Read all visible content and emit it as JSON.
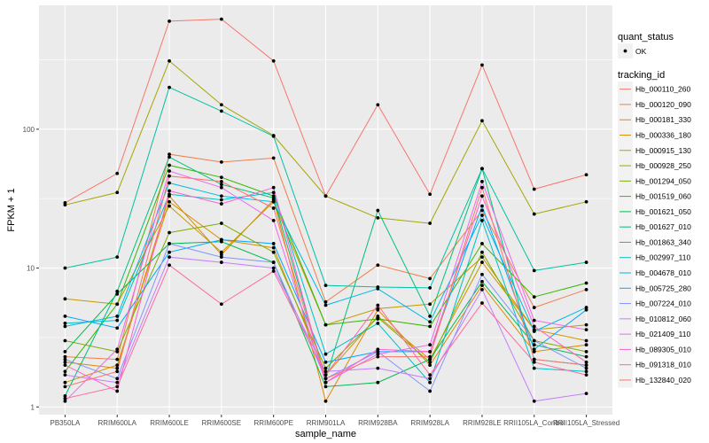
{
  "chart_data": {
    "type": "line",
    "xlabel": "sample_name",
    "ylabel": "FPKM + 1",
    "y_scale": "log10",
    "ylim": [
      0.88,
      780
    ],
    "y_ticks": [
      1,
      10,
      100
    ],
    "y_tick_labels": [
      "1",
      "10",
      "100"
    ],
    "categories": [
      "PB350LA",
      "RRIM600LA",
      "RRIM600LE",
      "RRIM600SE",
      "RRIM600PE",
      "RRIM901LA",
      "RRIM928BA",
      "RRIM928LA",
      "RRIM928LE",
      "RRII105LA_Control",
      "RRII105LA_Stressed"
    ],
    "legend": {
      "quant_title": "quant_status",
      "quant_label": "OK",
      "series_title": "tracking_id",
      "position": "right"
    },
    "series": [
      {
        "name": "Hb_000110_260",
        "color": "#F8766D",
        "values": [
          29.5,
          48,
          600,
          620,
          310,
          33,
          150,
          34,
          290,
          37,
          47
        ]
      },
      {
        "name": "Hb_000120_090",
        "color": "#EF7F49",
        "values": [
          2.3,
          2.2,
          66,
          58,
          62,
          5.7,
          10.5,
          8.4,
          26,
          5.2,
          7.0
        ]
      },
      {
        "name": "Hb_000181_330",
        "color": "#E38900",
        "values": [
          2.1,
          1.9,
          33,
          12.5,
          31,
          1.1,
          5.0,
          2.0,
          7.5,
          2.5,
          2.8
        ]
      },
      {
        "name": "Hb_000336_180",
        "color": "#D39200",
        "values": [
          1.5,
          2.0,
          30,
          16,
          14,
          1.7,
          4.5,
          2.2,
          11,
          3.6,
          3.0
        ]
      },
      {
        "name": "Hb_000915_130",
        "color": "#C09B00",
        "values": [
          6.0,
          5.5,
          28,
          13,
          30,
          3.9,
          5.1,
          5.5,
          12,
          3.6,
          3.9
        ]
      },
      {
        "name": "Hb_000928_250",
        "color": "#A3A500",
        "values": [
          28.5,
          35,
          310,
          150,
          90,
          33,
          23,
          21,
          115,
          24.5,
          30
        ]
      },
      {
        "name": "Hb_001294_050",
        "color": "#7CAE00",
        "values": [
          3.0,
          2.5,
          18,
          21,
          13,
          1.9,
          4.4,
          2.1,
          13,
          3.0,
          2.5
        ]
      },
      {
        "name": "Hb_001519_060",
        "color": "#39B600",
        "values": [
          1.8,
          5.5,
          55,
          45,
          33,
          3.9,
          4.3,
          3.8,
          15,
          6.2,
          7.8
        ]
      },
      {
        "name": "Hb_001621_050",
        "color": "#00BB4E",
        "values": [
          2.5,
          6.5,
          15,
          15.5,
          11,
          1.4,
          1.5,
          2.2,
          8.0,
          2.8,
          2.3
        ]
      },
      {
        "name": "Hb_001627_010",
        "color": "#00BF7D",
        "values": [
          1.2,
          6.8,
          63,
          40,
          32,
          1.6,
          26,
          4.5,
          52,
          2.2,
          2.0
        ]
      },
      {
        "name": "Hb_001863_340",
        "color": "#00C1A3",
        "values": [
          10,
          12,
          200,
          135,
          89,
          7.5,
          7.3,
          7.2,
          52,
          9.6,
          11
        ]
      },
      {
        "name": "Hb_002997_110",
        "color": "#00BFC4",
        "values": [
          4.0,
          4.2,
          34,
          31,
          35,
          2.4,
          4.0,
          1.5,
          22,
          1.9,
          1.8
        ]
      },
      {
        "name": "Hb_004678_010",
        "color": "#00B8E7",
        "values": [
          3.8,
          4.5,
          41,
          33,
          30,
          5.4,
          7.1,
          4.1,
          24,
          3.5,
          5.2
        ]
      },
      {
        "name": "Hb_005725_280",
        "color": "#00A9FF",
        "values": [
          4.5,
          3.7,
          13,
          16,
          15,
          2.1,
          2.5,
          2.5,
          28,
          2.6,
          5.0
        ]
      },
      {
        "name": "Hb_007224_010",
        "color": "#8494FF",
        "values": [
          2.2,
          1.6,
          15,
          12,
          11,
          1.6,
          2.5,
          1.3,
          9.0,
          3.0,
          1.9
        ]
      },
      {
        "name": "Hb_010812_060",
        "color": "#C77CFF",
        "values": [
          1.7,
          1.5,
          12,
          11,
          10,
          1.8,
          1.9,
          1.6,
          7.0,
          1.1,
          1.25
        ]
      },
      {
        "name": "Hb_021409_110",
        "color": "#ED68ED",
        "values": [
          1.1,
          2.6,
          50,
          38,
          22,
          1.5,
          2.4,
          2.8,
          42,
          4.2,
          3.6
        ]
      },
      {
        "name": "Hb_089305_010",
        "color": "#FF61CC",
        "values": [
          2.0,
          1.3,
          36,
          29,
          38,
          1.5,
          2.6,
          2.5,
          33,
          3.8,
          2.1
        ]
      },
      {
        "name": "Hb_091318_010",
        "color": "#FF68A1",
        "values": [
          1.15,
          1.4,
          10.5,
          5.5,
          9.5,
          1.7,
          5.4,
          1.7,
          5.6,
          2.1,
          1.7
        ]
      },
      {
        "name": "Hb_132840_020",
        "color": "#F8766D",
        "values": [
          1.4,
          1.8,
          46,
          42,
          27,
          1.6,
          2.3,
          2.3,
          38,
          2.2,
          2.0
        ]
      }
    ]
  }
}
